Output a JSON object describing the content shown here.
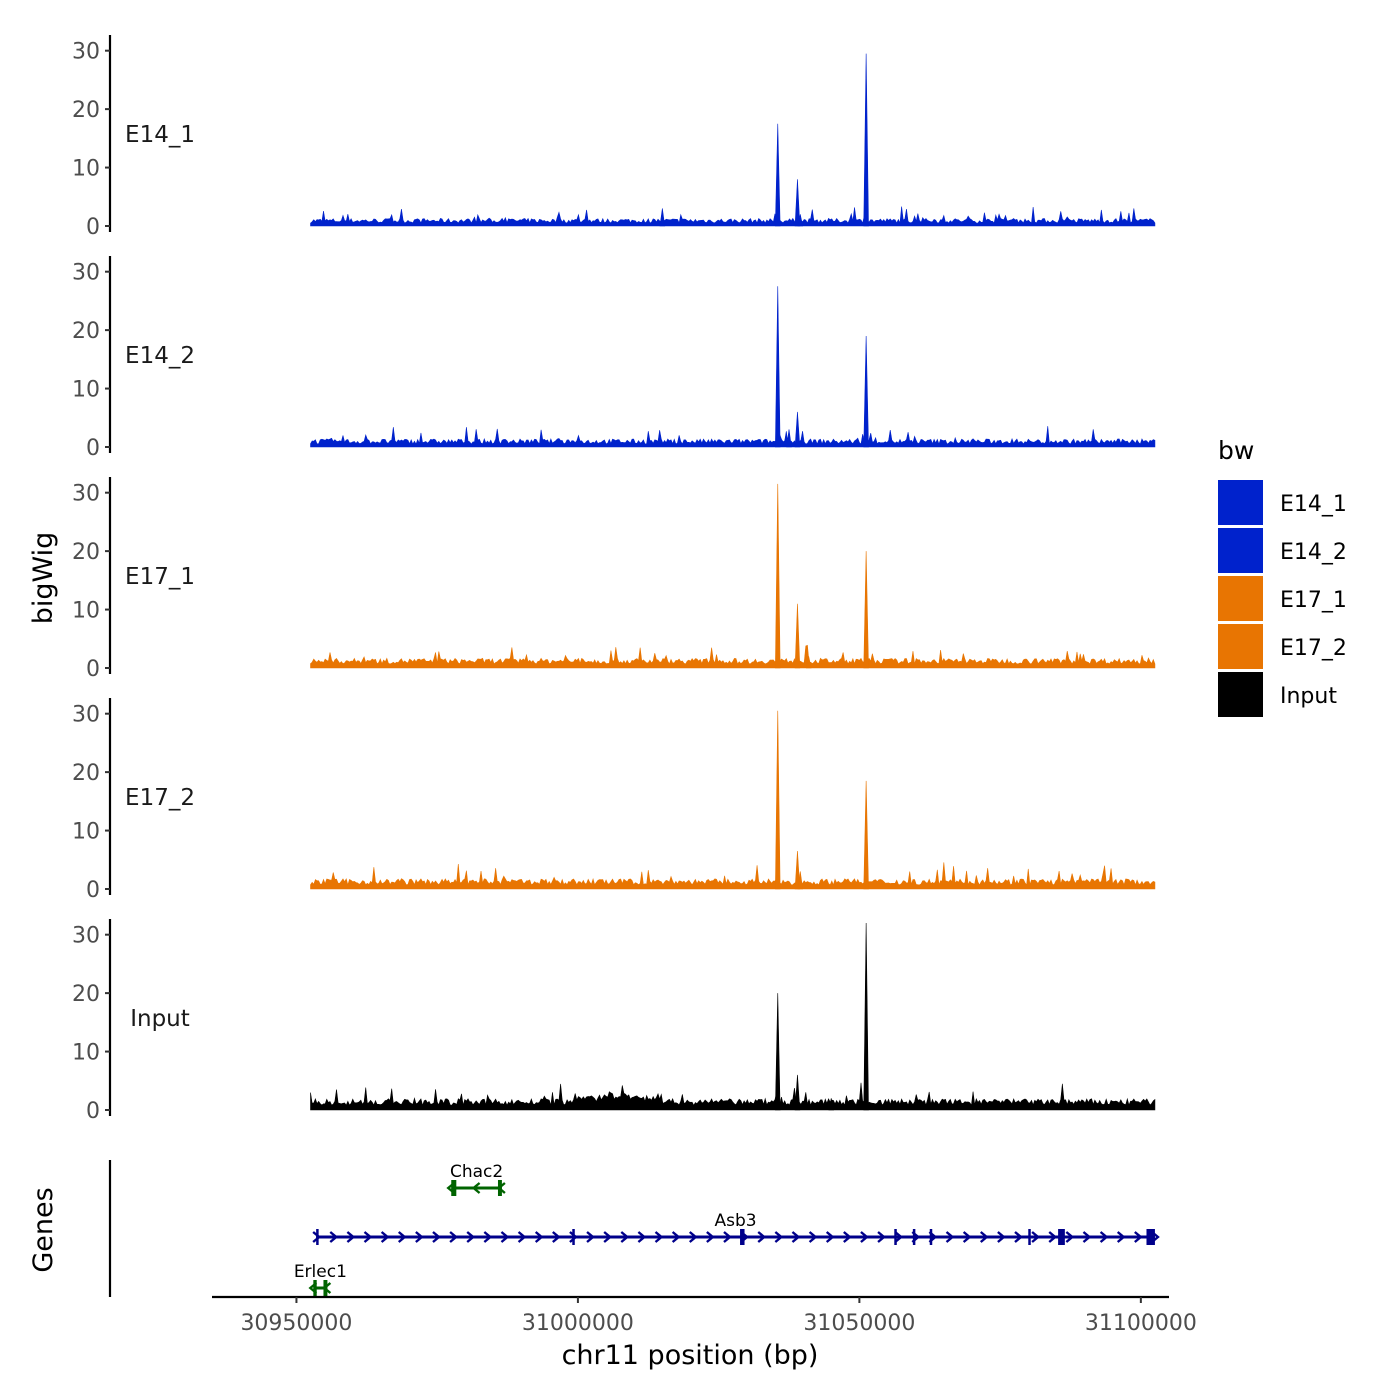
{
  "chart_data": {
    "type": "area",
    "title": "",
    "xlabel": "chr11 position (bp)",
    "ylabel": "bigWig",
    "genes_label": "Genes",
    "xlim": [
      30935000,
      31105000
    ],
    "ylim": [
      0,
      32
    ],
    "x_ticks": [
      30950000,
      31000000,
      31050000,
      31100000
    ],
    "x_tick_labels": [
      "30950000",
      "31000000",
      "31050000",
      "31100000"
    ],
    "y_ticks": [
      0,
      10,
      20,
      30
    ],
    "y_tick_labels": [
      "0",
      "10",
      "20",
      "30"
    ],
    "signal_range": [
      30952500,
      31102500
    ],
    "legend": {
      "title": "bw",
      "position": "right",
      "entries": [
        {
          "label": "E14_1",
          "color": "#0022cc"
        },
        {
          "label": "E14_2",
          "color": "#0022cc"
        },
        {
          "label": "E17_1",
          "color": "#e87502"
        },
        {
          "label": "E17_2",
          "color": "#e87502"
        },
        {
          "label": "Input",
          "color": "#000000"
        }
      ]
    },
    "series": [
      {
        "name": "E14_1",
        "color": "#0022cc",
        "baseline": 0.5,
        "noise": 1.0,
        "bumps": [],
        "peaks": [
          {
            "x": 31035500,
            "y": 17.5
          },
          {
            "x": 31039000,
            "y": 8.0
          },
          {
            "x": 31039500,
            "y": 2.0
          },
          {
            "x": 31051200,
            "y": 29.5
          },
          {
            "x": 31015000,
            "y": 3.0
          }
        ]
      },
      {
        "name": "E14_2",
        "color": "#0022cc",
        "baseline": 0.5,
        "noise": 1.1,
        "bumps": [],
        "peaks": [
          {
            "x": 31035500,
            "y": 27.5
          },
          {
            "x": 31037500,
            "y": 3.0
          },
          {
            "x": 31039000,
            "y": 6.0
          },
          {
            "x": 31051200,
            "y": 19.0
          }
        ]
      },
      {
        "name": "E17_1",
        "color": "#e87502",
        "baseline": 0.7,
        "noise": 1.2,
        "bumps": [],
        "peaks": [
          {
            "x": 31035500,
            "y": 31.5
          },
          {
            "x": 31039000,
            "y": 11.0
          },
          {
            "x": 31041000,
            "y": 2.0
          },
          {
            "x": 31051200,
            "y": 20.0
          }
        ]
      },
      {
        "name": "E17_2",
        "color": "#e87502",
        "baseline": 0.7,
        "noise": 1.3,
        "bumps": [],
        "peaks": [
          {
            "x": 31035500,
            "y": 30.5
          },
          {
            "x": 31039000,
            "y": 6.5
          },
          {
            "x": 31039500,
            "y": 3.0
          },
          {
            "x": 31051200,
            "y": 18.5
          }
        ]
      },
      {
        "name": "Input",
        "color": "#000000",
        "baseline": 0.8,
        "noise": 1.4,
        "bumps": [
          {
            "from": 31000000,
            "to": 31015000,
            "add": 0.6
          }
        ],
        "peaks": [
          {
            "x": 31035500,
            "y": 20.0
          },
          {
            "x": 31039000,
            "y": 6.0
          },
          {
            "x": 31045000,
            "y": 2.0
          },
          {
            "x": 31051200,
            "y": 32.0
          }
        ]
      }
    ],
    "genes": [
      {
        "name": "Chac2",
        "strand": "-",
        "row": 0,
        "color": "#006400",
        "start": 30977500,
        "end": 30986500,
        "exons": [
          [
            30977500,
            30978400
          ],
          [
            30985800,
            30986500
          ]
        ]
      },
      {
        "name": "Asb3",
        "strand": "+",
        "row": 1,
        "color": "#00008b",
        "start": 30953500,
        "end": 31102500,
        "exons": [
          [
            30953500,
            30953900
          ],
          [
            30999000,
            30999400
          ],
          [
            31028800,
            31029600
          ],
          [
            31056200,
            31056600
          ],
          [
            31059500,
            31059900
          ],
          [
            31062500,
            31062900
          ],
          [
            31080000,
            31080300
          ],
          [
            31085300,
            31086500
          ],
          [
            31101000,
            31102500
          ]
        ]
      },
      {
        "name": "Erlec1",
        "strand": "-",
        "row": 2,
        "color": "#006400",
        "start": 30953000,
        "end": 30955500,
        "exons": [
          [
            30953000,
            30953600
          ],
          [
            30954800,
            30955500
          ]
        ]
      }
    ]
  }
}
